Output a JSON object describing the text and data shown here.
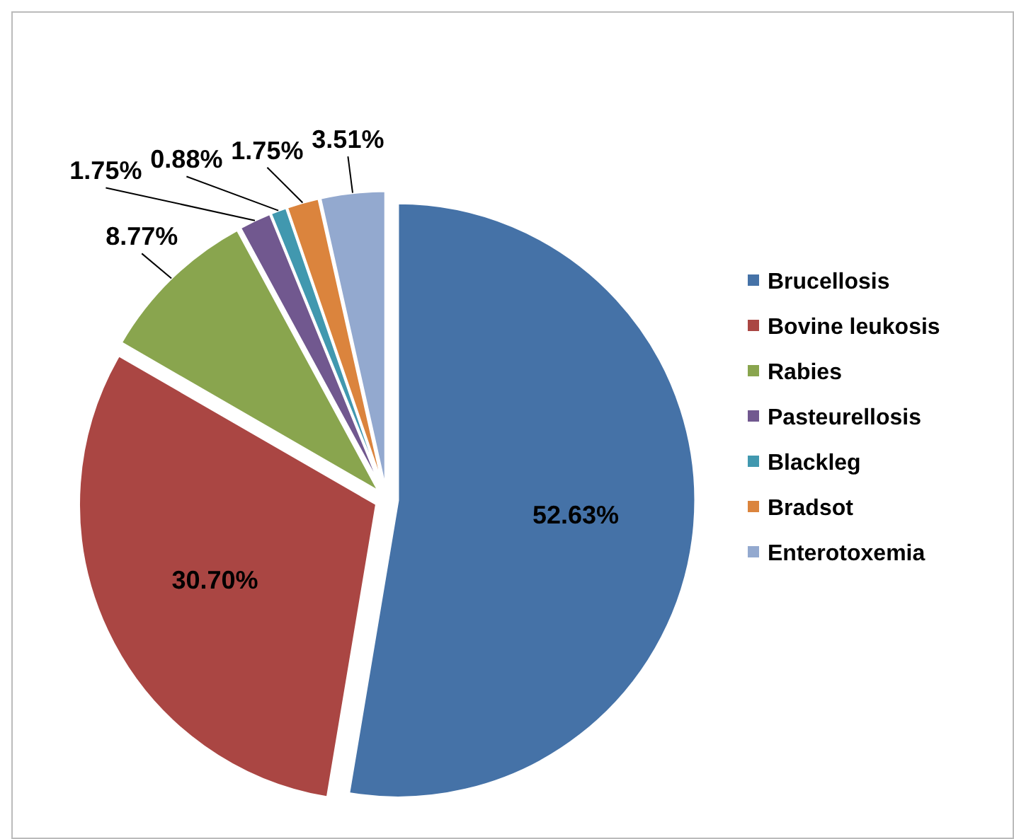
{
  "chart_data": {
    "type": "pie",
    "categories": [
      "Brucellosis",
      "Bovine leukosis",
      "Rabies",
      "Pasteurellosis",
      "Blackleg",
      "Bradsot",
      "Enterotoxemia"
    ],
    "values": [
      52.63,
      30.7,
      8.77,
      1.75,
      0.88,
      1.75,
      3.51
    ],
    "value_labels": [
      "52.63%",
      "30.70%",
      "8.77%",
      "1.75%",
      "0.88%",
      "1.75%",
      "3.51%"
    ],
    "colors": [
      "#4572a7",
      "#aa4643",
      "#89a54e",
      "#71588f",
      "#4198af",
      "#db843d",
      "#93a9cf"
    ],
    "legend": "right"
  }
}
